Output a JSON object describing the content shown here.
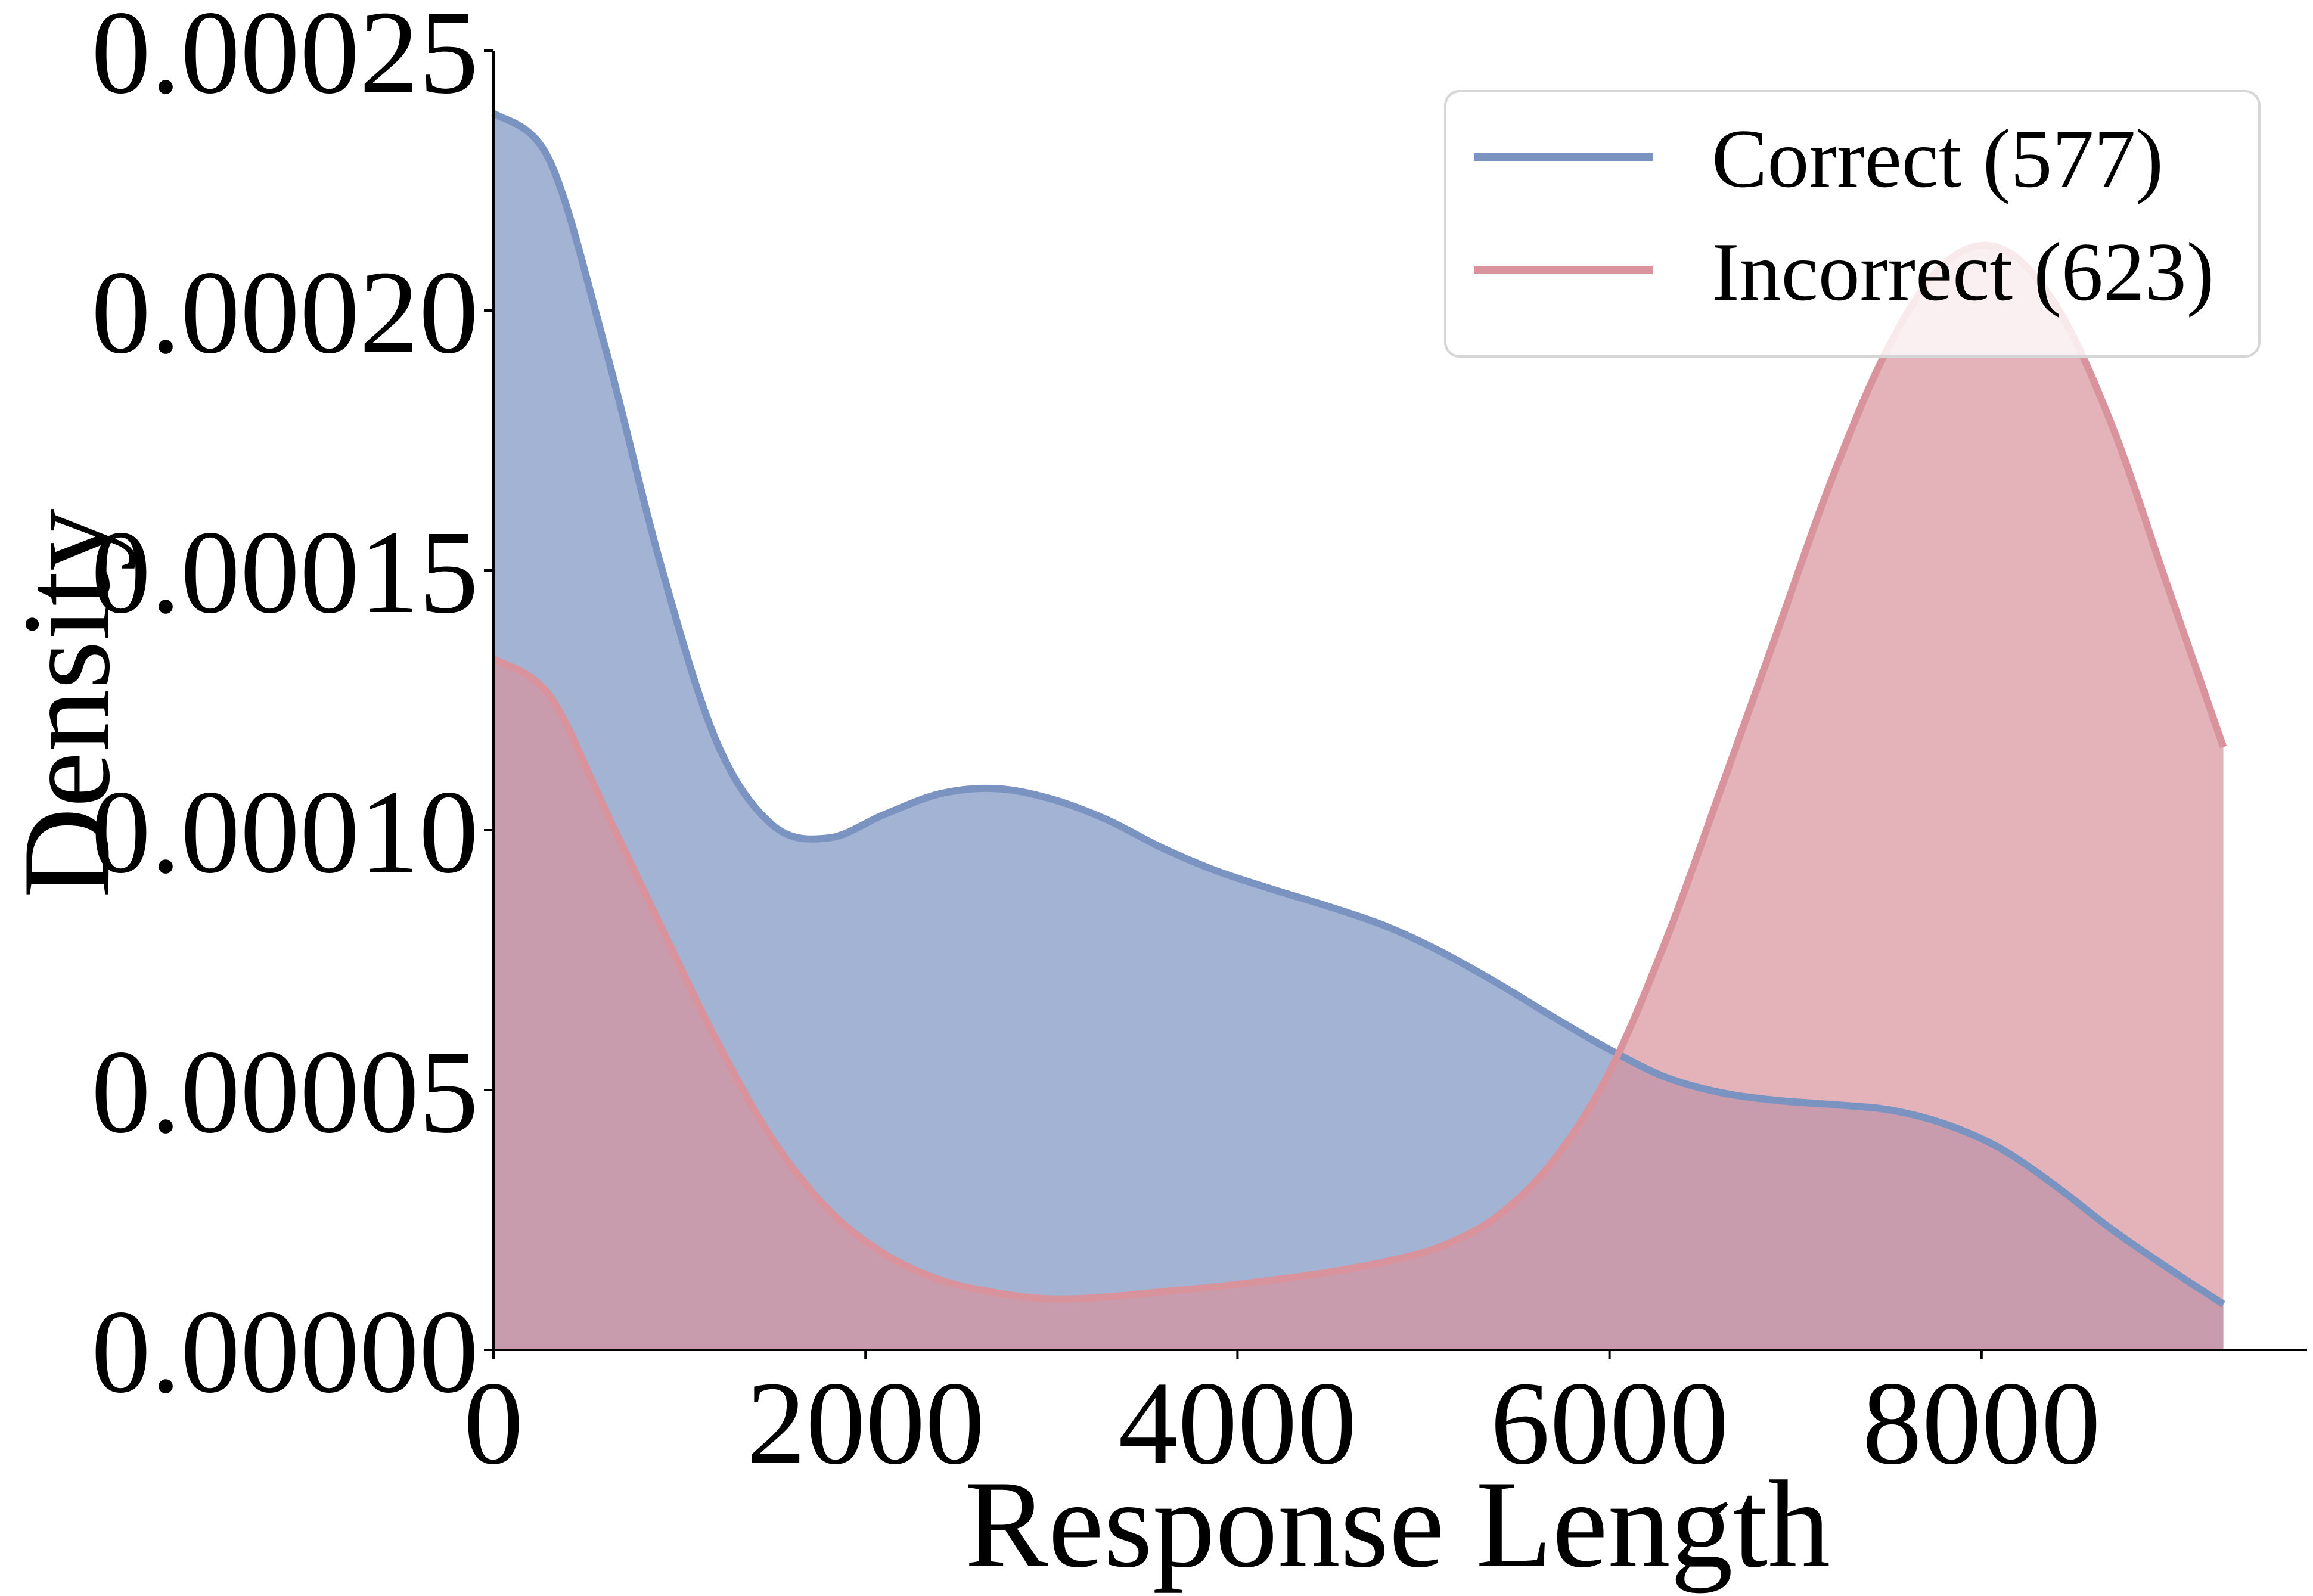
{
  "chart_data": {
    "type": "area",
    "title": "",
    "xlabel": "Response Length",
    "ylabel": "Density",
    "xlim": [
      0,
      9750
    ],
    "ylim": [
      0,
      0.00025
    ],
    "x_ticks": [
      "0",
      "2000",
      "4000",
      "6000",
      "8000"
    ],
    "y_ticks": [
      "0.00000",
      "0.00005",
      "0.00010",
      "0.00015",
      "0.00020",
      "0.00025"
    ],
    "grid": false,
    "legend_position": "top-right",
    "series": [
      {
        "name": "Correct (577)",
        "color": "#7b93c0",
        "x": [
          0,
          300,
          600,
          900,
          1200,
          1500,
          1800,
          2100,
          2400,
          2700,
          3000,
          3300,
          3600,
          3900,
          4200,
          4500,
          4800,
          5100,
          5400,
          5700,
          6000,
          6300,
          6600,
          6900,
          7200,
          7500,
          7800,
          8100,
          8400,
          8700,
          9000,
          9300
        ],
        "y": [
          0.000238,
          0.000229,
          0.000193,
          0.000151,
          0.000117,
          0.000101,
          9.85e-05,
          0.000103,
          0.000107,
          0.000108,
          0.000106,
          0.000102,
          9.65e-05,
          9.2e-05,
          8.85e-05,
          8.52e-05,
          8.15e-05,
          7.65e-05,
          7.05e-05,
          6.4e-05,
          5.78e-05,
          5.25e-05,
          4.95e-05,
          4.8e-05,
          4.72e-05,
          4.62e-05,
          4.35e-05,
          3.88e-05,
          3.15e-05,
          2.32e-05,
          1.58e-05,
          8.8e-06
        ]
      },
      {
        "name": "Incorrect (623)",
        "color": "#d9939c",
        "x": [
          0,
          300,
          600,
          900,
          1200,
          1500,
          1800,
          2100,
          2400,
          2700,
          3000,
          3300,
          3600,
          3900,
          4200,
          4500,
          4800,
          5100,
          5400,
          5700,
          6000,
          6300,
          6600,
          6900,
          7200,
          7500,
          7800,
          8100,
          8400,
          8700,
          9000,
          9300
        ],
        "y": [
          0.000133,
          0.000126,
          0.000104,
          8.15e-05,
          5.95e-05,
          4.05e-05,
          2.7e-05,
          1.85e-05,
          1.35e-05,
          1.1e-05,
          9.8e-06,
          1.02e-05,
          1.12e-05,
          1.22e-05,
          1.35e-05,
          1.5e-05,
          1.7e-05,
          2e-05,
          2.58e-05,
          3.65e-05,
          5.35e-05,
          7.85e-05,
          0.000108,
          0.000138,
          0.000168,
          0.000193,
          0.000209,
          0.000212,
          0.000201,
          0.000178,
          0.000147,
          0.000116
        ]
      }
    ]
  }
}
